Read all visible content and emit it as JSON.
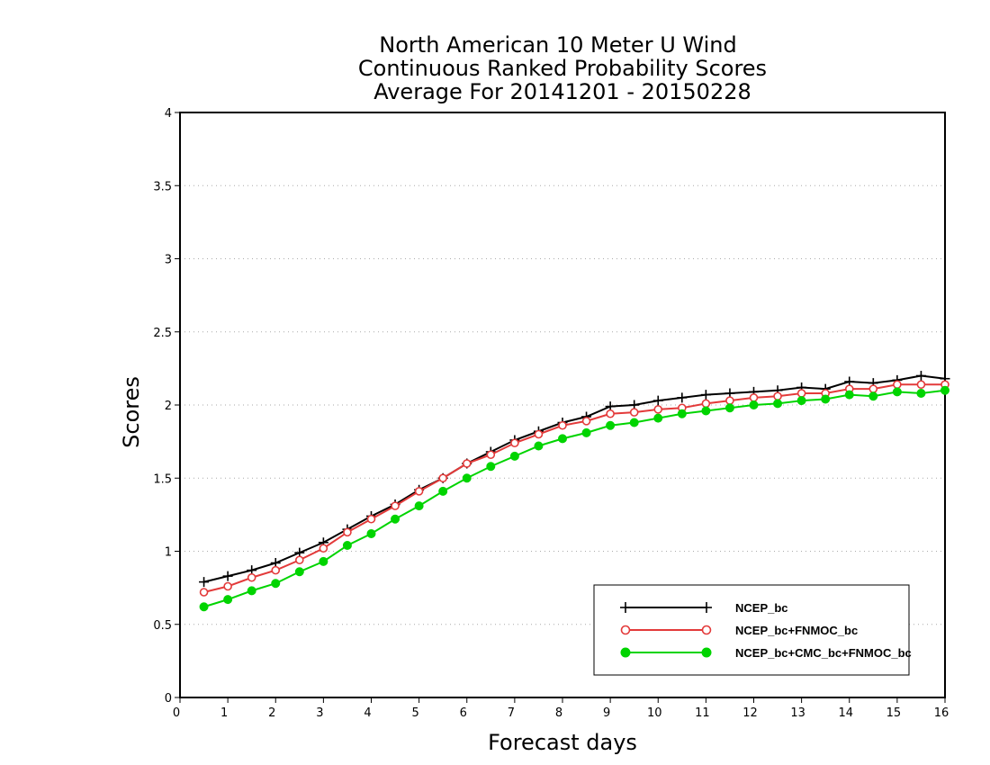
{
  "chart_data": {
    "type": "line",
    "title": [
      "North American 10 Meter U Wind",
      "Continuous Ranked Probability Scores",
      "Average For 20141201 - 20150228"
    ],
    "xlabel": "Forecast days",
    "ylabel": "Scores",
    "xlim": [
      0,
      16
    ],
    "ylim": [
      0,
      4
    ],
    "xticks": [
      0,
      1,
      2,
      3,
      4,
      5,
      6,
      7,
      8,
      9,
      10,
      11,
      12,
      13,
      14,
      15,
      16
    ],
    "yticks": [
      0,
      0.5,
      1,
      1.5,
      2,
      2.5,
      3,
      3.5,
      4
    ],
    "ytick_labels": [
      "0",
      "0.5",
      "1",
      "1.5",
      "2",
      "2.5",
      "3",
      "3.5",
      "4"
    ],
    "grid": true,
    "legend_position": "bottom-right",
    "x": [
      0.5,
      1,
      1.5,
      2,
      2.5,
      3,
      3.5,
      4,
      4.5,
      5,
      5.5,
      6,
      6.5,
      7,
      7.5,
      8,
      8.5,
      9,
      9.5,
      10,
      10.5,
      11,
      11.5,
      12,
      12.5,
      13,
      13.5,
      14,
      14.5,
      15,
      15.5,
      16
    ],
    "series": [
      {
        "name": "NCEP_bc",
        "color": "#000000",
        "marker": "plus",
        "values": [
          0.79,
          0.83,
          0.87,
          0.92,
          0.99,
          1.06,
          1.15,
          1.24,
          1.32,
          1.42,
          1.5,
          1.6,
          1.68,
          1.76,
          1.82,
          1.88,
          1.92,
          1.99,
          2.0,
          2.03,
          2.05,
          2.07,
          2.08,
          2.09,
          2.1,
          2.12,
          2.11,
          2.16,
          2.15,
          2.17,
          2.2,
          2.18
        ]
      },
      {
        "name": "NCEP_bc+FNMOC_bc",
        "color": "#e33a3a",
        "marker": "open-circle",
        "values": [
          0.72,
          0.76,
          0.82,
          0.87,
          0.94,
          1.02,
          1.13,
          1.22,
          1.31,
          1.41,
          1.5,
          1.6,
          1.66,
          1.74,
          1.8,
          1.86,
          1.89,
          1.94,
          1.95,
          1.97,
          1.98,
          2.01,
          2.03,
          2.05,
          2.06,
          2.08,
          2.08,
          2.11,
          2.11,
          2.14,
          2.14,
          2.14
        ]
      },
      {
        "name": "NCEP_bc+CMC_bc+FNMOC_bc",
        "color": "#00d400",
        "marker": "filled-circle",
        "values": [
          0.62,
          0.67,
          0.73,
          0.78,
          0.86,
          0.93,
          1.04,
          1.12,
          1.22,
          1.31,
          1.41,
          1.5,
          1.58,
          1.65,
          1.72,
          1.77,
          1.81,
          1.86,
          1.88,
          1.91,
          1.94,
          1.96,
          1.98,
          2.0,
          2.01,
          2.03,
          2.04,
          2.07,
          2.06,
          2.09,
          2.08,
          2.1
        ]
      }
    ]
  }
}
